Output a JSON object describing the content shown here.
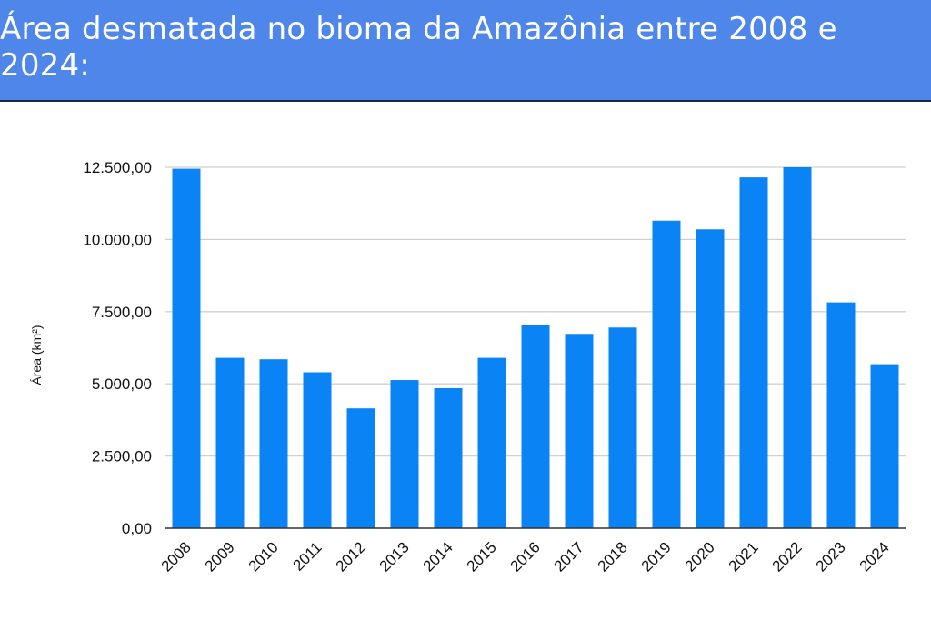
{
  "header": {
    "title": "Área desmatada no bioma da Amazônia entre 2008 e 2024:"
  },
  "colors": {
    "header_bg": "#4f86ea",
    "bar": "#0a84f5",
    "grid": "#d0d0d0",
    "axis": "#333333"
  },
  "chart_data": {
    "type": "bar",
    "categories": [
      "2008",
      "2009",
      "2010",
      "2011",
      "2012",
      "2013",
      "2014",
      "2015",
      "2016",
      "2017",
      "2018",
      "2019",
      "2020",
      "2021",
      "2022",
      "2023",
      "2024"
    ],
    "values": [
      12450,
      5900,
      5850,
      5400,
      4150,
      5130,
      4850,
      5900,
      7050,
      6730,
      6950,
      10650,
      10350,
      12150,
      12500,
      7820,
      5680
    ],
    "ylabel": "Área (km²)",
    "xlabel": "",
    "ylim": [
      0,
      12500
    ],
    "yticks": [
      0,
      2500,
      5000,
      7500,
      10000,
      12500
    ],
    "ytick_labels": [
      "0,00",
      "2.500,00",
      "5.000,00",
      "7.500,00",
      "10.000,00",
      "12.500,00"
    ],
    "grid": true,
    "legend": "none"
  }
}
